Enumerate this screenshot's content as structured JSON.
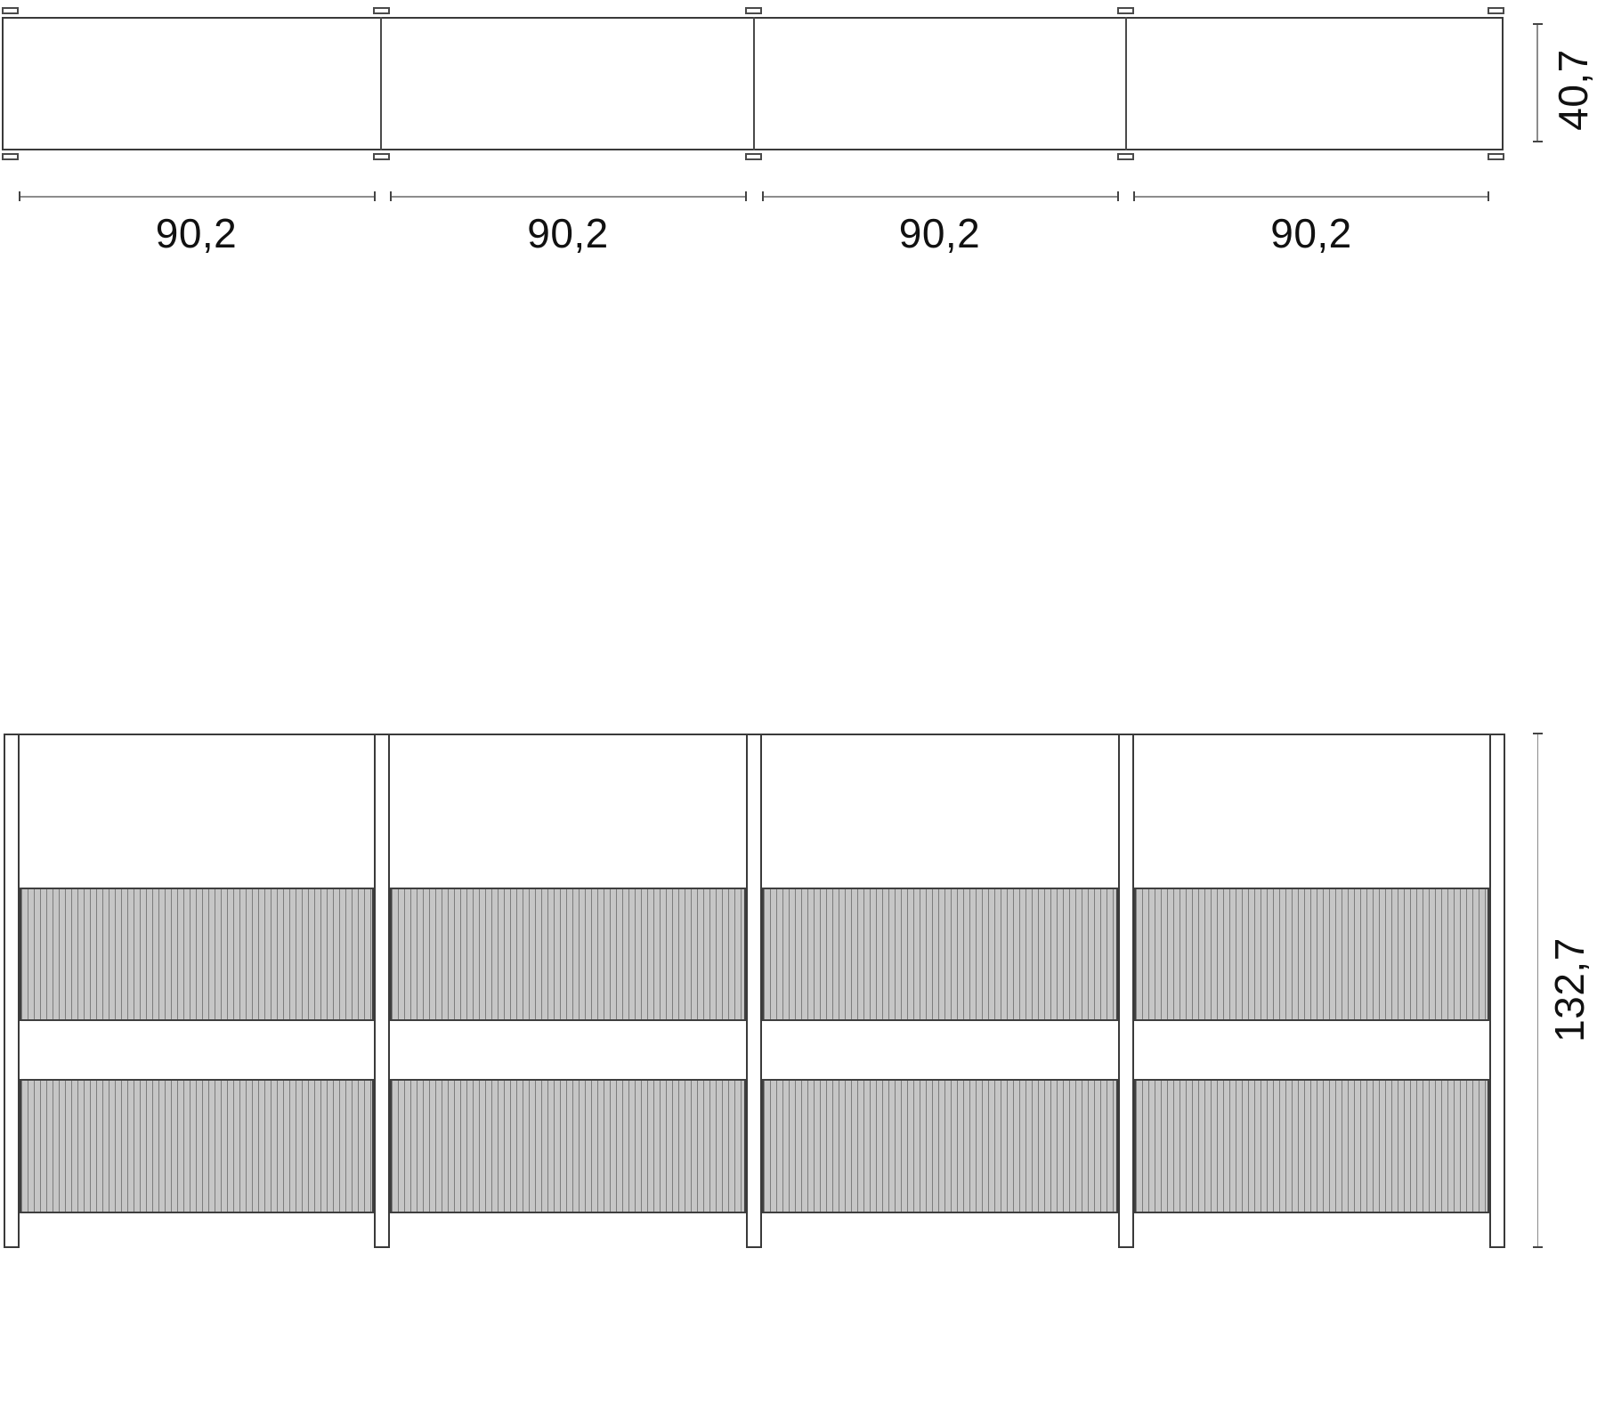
{
  "drawing": {
    "plan": {
      "bay_count": 4,
      "post_count": 5,
      "bays": [
        {
          "label": "90,2"
        },
        {
          "label": "90,2"
        },
        {
          "label": "90,2"
        },
        {
          "label": "90,2"
        }
      ],
      "depth_label": "40,7"
    },
    "elevation": {
      "bay_count": 4,
      "post_count": 5,
      "panel_rows_per_bay": 2,
      "height_label": "132,7"
    }
  },
  "colors": {
    "outline": "#3a3a3a",
    "divider": "#4a4a4a",
    "dim_line": "#8c8c8c",
    "tick": "#444444",
    "text": "#111111",
    "panel_fill": "#c6c6c6",
    "panel_hatch": "#7d7d7d",
    "panel_border": "#3f3f3f",
    "background": "#ffffff"
  }
}
